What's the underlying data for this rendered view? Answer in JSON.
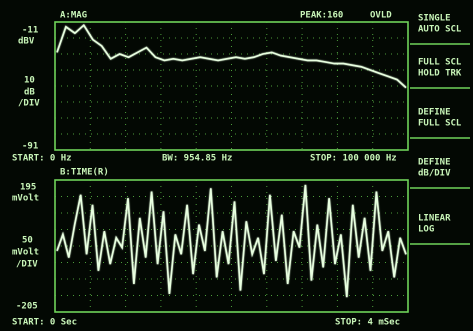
{
  "header": {
    "title": "A:MAG",
    "peak": "PEAK:160",
    "status": "OVLD"
  },
  "upper": {
    "top": -11,
    "top_unit": "dBV",
    "scale": 10,
    "scale_unit": "dB",
    "scale_per": "/DIV",
    "bottom": -91,
    "start": "START: 0 Hz",
    "bw": "BW: 954.85 Hz",
    "stop": "STOP: 100 000 Hz",
    "trace": [
      -30,
      -14,
      -18,
      -13,
      -22,
      -26,
      -34,
      -31,
      -33,
      -30,
      -27,
      -33,
      -35,
      -34,
      -35,
      -34,
      -33,
      -34,
      -35,
      -34,
      -33,
      -34,
      -33,
      -31,
      -30,
      -32,
      -33,
      -34,
      -35,
      -35,
      -36,
      -37,
      -37,
      -38,
      -39,
      -41,
      -43,
      -45,
      -47,
      -52
    ]
  },
  "lower": {
    "title": "B:TIME(R)",
    "top": 195,
    "top_unit": "mVolt",
    "scale": 50,
    "scale_unit": "mVolt",
    "scale_per": "/DIV",
    "bottom": -205,
    "start": "START: 0  Sec",
    "stop": "STOP: 4 mSec",
    "trace": [
      -20,
      30,
      -40,
      60,
      150,
      -30,
      120,
      -80,
      40,
      -60,
      20,
      -10,
      140,
      -120,
      80,
      -40,
      160,
      -60,
      100,
      -150,
      30,
      -30,
      120,
      -90,
      60,
      -20,
      170,
      -100,
      40,
      -60,
      130,
      -140,
      70,
      -30,
      20,
      -90,
      150,
      -50,
      90,
      -120,
      40,
      -10,
      180,
      -110,
      60,
      -70,
      140,
      -60,
      30,
      -160,
      120,
      -40,
      80,
      -80,
      160,
      -20,
      40,
      -100,
      20,
      -30
    ]
  },
  "softkeys": [
    [
      "SINGLE",
      "AUTO SCL"
    ],
    [
      "FULL SCL",
      "HOLD TRK"
    ],
    [
      "DEFINE",
      "FULL SCL"
    ],
    [
      "DEFINE",
      "dB/DIV"
    ],
    [
      "LINEAR",
      "LOG"
    ]
  ]
}
